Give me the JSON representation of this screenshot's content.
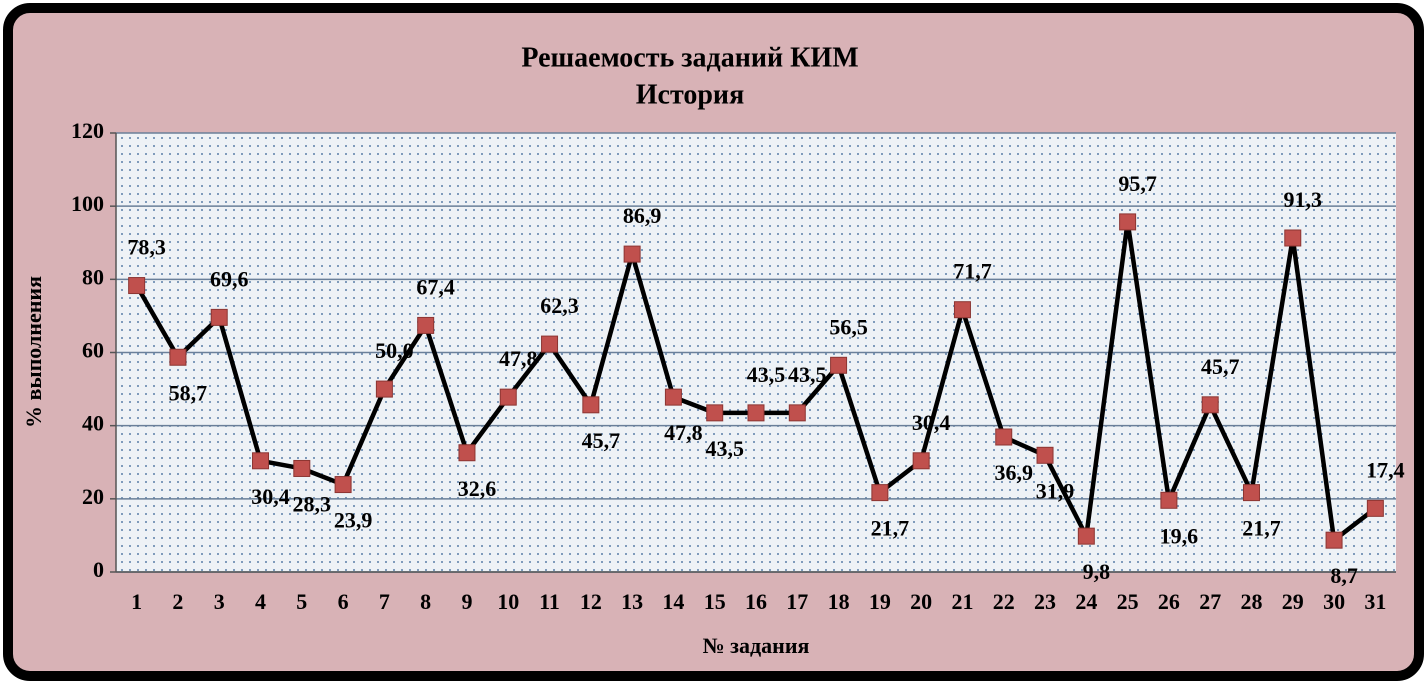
{
  "chart_data": {
    "type": "line",
    "title": "Решаемость заданий КИМ",
    "subtitle": "История",
    "x_label": "№ задания",
    "y_label": "% выполнения",
    "categories": [
      "1",
      "2",
      "3",
      "4",
      "5",
      "6",
      "7",
      "8",
      "9",
      "10",
      "11",
      "12",
      "13",
      "14",
      "15",
      "16",
      "17",
      "18",
      "19",
      "20",
      "21",
      "22",
      "23",
      "24",
      "25",
      "26",
      "27",
      "28",
      "29",
      "30",
      "31"
    ],
    "values": [
      78.3,
      58.7,
      69.6,
      30.4,
      28.3,
      23.9,
      50.0,
      67.4,
      32.6,
      47.8,
      62.3,
      45.7,
      86.9,
      47.8,
      43.5,
      43.5,
      43.5,
      56.5,
      21.7,
      30.4,
      71.7,
      36.9,
      31.9,
      9.8,
      95.7,
      19.6,
      45.7,
      21.7,
      91.3,
      8.7,
      17.4
    ],
    "value_labels": [
      "78,3",
      "58,7",
      "69,6",
      "30,4",
      "28,3",
      "23,9",
      "50,0",
      "67,4",
      "32,6",
      "47,8",
      "62,3",
      "45,7",
      "86,9",
      "47,8",
      "43,5",
      "43,5",
      "43,5",
      "56,5",
      "21,7",
      "30,4",
      "71,7",
      "36,9",
      "31,9",
      "9,8",
      "95,7",
      "19,6",
      "45,7",
      "21,7",
      "91,3",
      "8,7",
      "17,4"
    ],
    "color": "#000000",
    "marker_color": "#c0504d",
    "ylim": [
      0,
      120
    ],
    "yticks": [
      0,
      20,
      40,
      60,
      80,
      100,
      120
    ],
    "grid": true
  }
}
